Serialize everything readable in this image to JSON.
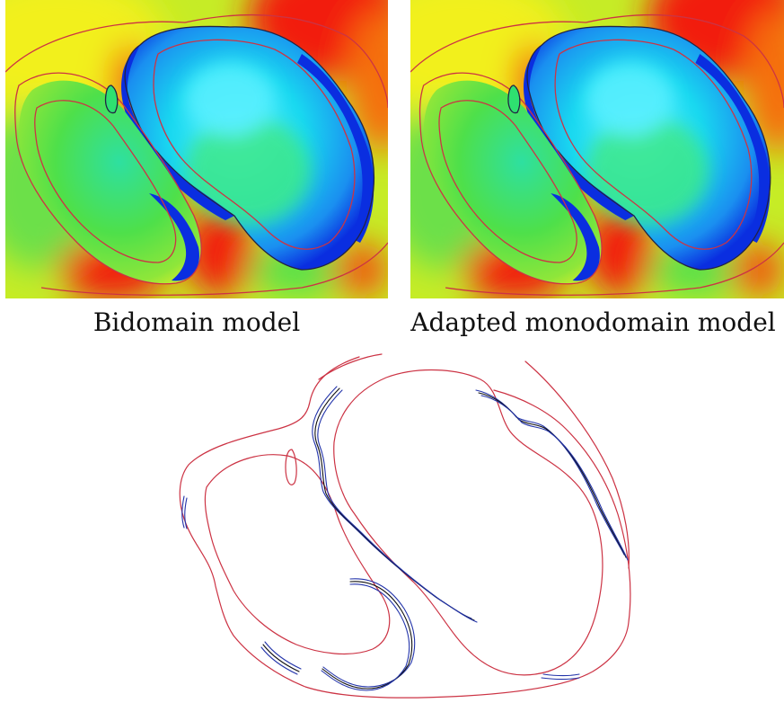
{
  "captions": {
    "left": "Bidomain model",
    "right": "Adapted monodomain model"
  },
  "colors": {
    "contour_red": "#cc3344",
    "contour_blue": "#2233aa",
    "contour_black": "#111111",
    "field_blue": "#0a2ee0",
    "field_cyan": "#19e6f0",
    "field_green": "#4ee04a",
    "field_yellow": "#f5f020",
    "field_red": "#f21a10"
  }
}
